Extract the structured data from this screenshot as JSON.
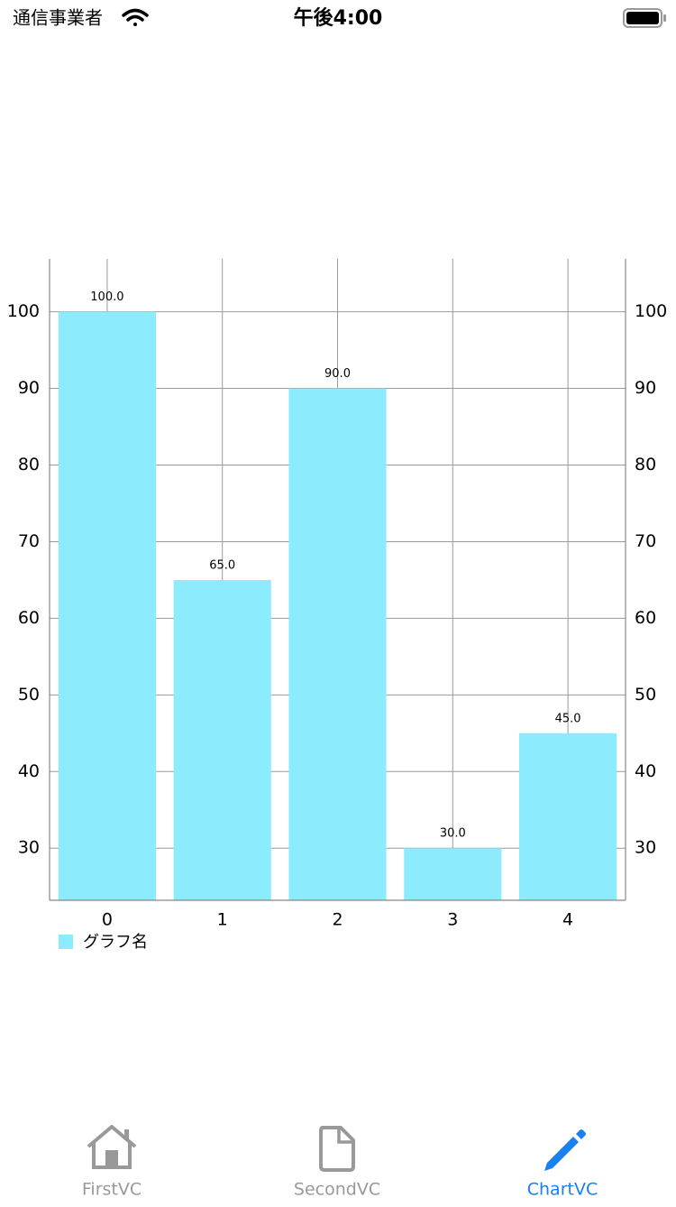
{
  "status_bar": {
    "carrier": "通信事業者",
    "time": "午後4:00"
  },
  "chart_data": {
    "type": "bar",
    "categories": [
      "0",
      "1",
      "2",
      "3",
      "4"
    ],
    "values": [
      100,
      65,
      90,
      30,
      45
    ],
    "value_labels": [
      "100.0",
      "65.0",
      "90.0",
      "30.0",
      "45.0"
    ],
    "color": "#8cebfc",
    "ylim": [
      23.2,
      106.9
    ],
    "yticks": [
      30,
      40,
      50,
      60,
      70,
      80,
      90,
      100
    ],
    "y2lim": [
      23.2,
      106.9
    ],
    "y2ticks": [
      30,
      40,
      50,
      60,
      70,
      80,
      90,
      100
    ],
    "grid": true,
    "legend": "グラフ名",
    "legend_position": "bottom-left"
  },
  "tab_bar": {
    "items": [
      {
        "label": "FirstVC"
      },
      {
        "label": "SecondVC"
      },
      {
        "label": "ChartVC"
      }
    ],
    "selected": 2
  }
}
